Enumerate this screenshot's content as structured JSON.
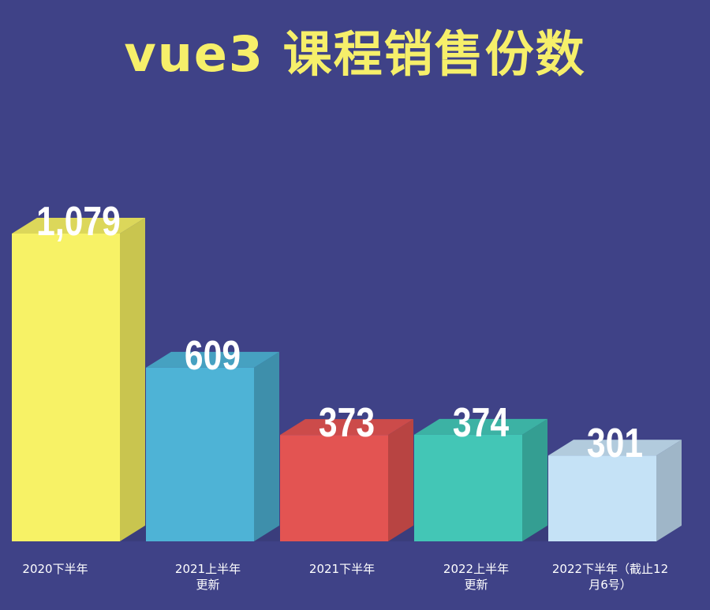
{
  "chart_data": {
    "type": "bar",
    "title": "vue3 课程销售份数",
    "xlabel": "",
    "ylabel": "",
    "categories": [
      [
        "2020下半年"
      ],
      [
        "2021上半年",
        "更新"
      ],
      [
        "2021下半年"
      ],
      [
        "2022上半年",
        "更新"
      ],
      [
        "2022下半年（截止12",
        "月6号）"
      ]
    ],
    "values": [
      1079,
      609,
      373,
      374,
      301
    ],
    "value_labels": [
      "1,079",
      "609",
      "373",
      "374",
      "301"
    ],
    "ylim": [
      0,
      1100
    ],
    "grid": false,
    "legend": "none",
    "colors": [
      {
        "front": "#f7f266",
        "side": "#c9c54f",
        "top": "#dcd75a"
      },
      {
        "front": "#4eb3d6",
        "side": "#3e8fab",
        "top": "#46a1c1"
      },
      {
        "front": "#e35452",
        "side": "#b84442",
        "top": "#cc4b4a"
      },
      {
        "front": "#43c6b6",
        "side": "#349e92",
        "top": "#3cb2a4"
      },
      {
        "front": "#c5e2f6",
        "side": "#9fb6c8",
        "top": "#b2cbdd"
      }
    ]
  }
}
